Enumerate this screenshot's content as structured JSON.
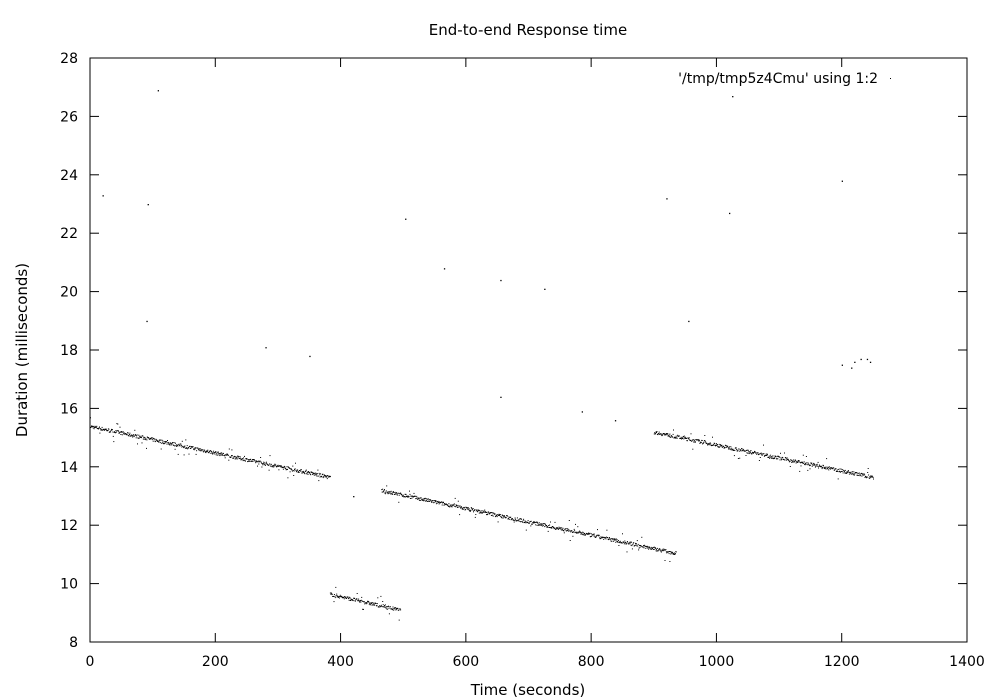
{
  "chart_data": {
    "type": "scatter",
    "title": "End-to-end Response time",
    "xlabel": "Time (seconds)",
    "ylabel": "Duration (milliseconds)",
    "xlim": [
      0,
      1400
    ],
    "ylim": [
      8,
      28
    ],
    "xticks": [
      0,
      200,
      400,
      600,
      800,
      1000,
      1200,
      1400
    ],
    "yticks": [
      8,
      10,
      12,
      14,
      16,
      18,
      20,
      22,
      24,
      26,
      28
    ],
    "grid": false,
    "legend_position": "top-right",
    "marker_color": "#000000",
    "series": [
      {
        "name": "'/tmp/tmp5z4Cmu' using 1:2",
        "segments": [
          {
            "x_start": 0,
            "x_end": 383,
            "y_start": 15.4,
            "y_end": 13.65
          },
          {
            "x_start": 383,
            "x_end": 495,
            "y_start": 9.65,
            "y_end": 9.1
          },
          {
            "x_start": 465,
            "x_end": 935,
            "y_start": 13.2,
            "y_end": 11.05
          },
          {
            "x_start": 900,
            "x_end": 1250,
            "y_start": 15.2,
            "y_end": 13.65
          }
        ],
        "outliers": [
          {
            "x": 20,
            "y": 23.3
          },
          {
            "x": 90,
            "y": 19.0
          },
          {
            "x": 92,
            "y": 23.0
          },
          {
            "x": 108,
            "y": 26.9
          },
          {
            "x": 280,
            "y": 18.1
          },
          {
            "x": 350,
            "y": 17.8
          },
          {
            "x": 420,
            "y": 13.0
          },
          {
            "x": 503,
            "y": 22.5
          },
          {
            "x": 565,
            "y": 20.8
          },
          {
            "x": 655,
            "y": 20.4
          },
          {
            "x": 655,
            "y": 16.4
          },
          {
            "x": 725,
            "y": 20.1
          },
          {
            "x": 785,
            "y": 15.9
          },
          {
            "x": 838,
            "y": 15.6
          },
          {
            "x": 920,
            "y": 23.2
          },
          {
            "x": 955,
            "y": 19.0
          },
          {
            "x": 1020,
            "y": 22.7
          },
          {
            "x": 1025,
            "y": 26.7
          },
          {
            "x": 1200,
            "y": 23.8
          },
          {
            "x": 1200,
            "y": 17.5
          },
          {
            "x": 1215,
            "y": 17.4
          },
          {
            "x": 1220,
            "y": 17.6
          },
          {
            "x": 1230,
            "y": 17.7
          },
          {
            "x": 1240,
            "y": 17.7
          },
          {
            "x": 1245,
            "y": 17.6
          }
        ]
      }
    ]
  }
}
